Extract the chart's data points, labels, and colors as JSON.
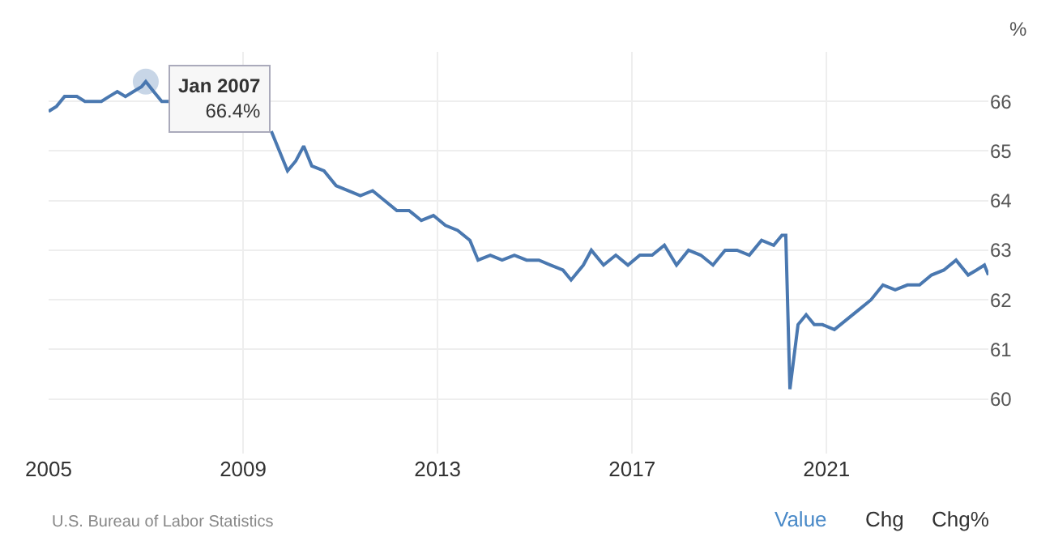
{
  "chart_data": {
    "type": "line",
    "ylabel": "%",
    "x": [
      "2005-01",
      "2005-03",
      "2005-05",
      "2005-08",
      "2005-10",
      "2005-12",
      "2006-02",
      "2006-04",
      "2006-06",
      "2006-08",
      "2006-10",
      "2006-12",
      "2007-01",
      "2007-03",
      "2007-05",
      "2007-07",
      "2007-09",
      "2007-12",
      "2008-03",
      "2008-06",
      "2008-09",
      "2008-12",
      "2009-03",
      "2009-06",
      "2009-08",
      "2009-10",
      "2009-12",
      "2010-02",
      "2010-04",
      "2010-06",
      "2010-09",
      "2010-12",
      "2011-03",
      "2011-06",
      "2011-09",
      "2011-12",
      "2012-03",
      "2012-06",
      "2012-09",
      "2012-12",
      "2013-03",
      "2013-06",
      "2013-09",
      "2013-11",
      "2014-02",
      "2014-05",
      "2014-08",
      "2014-11",
      "2015-02",
      "2015-05",
      "2015-08",
      "2015-10",
      "2016-01",
      "2016-03",
      "2016-06",
      "2016-09",
      "2016-12",
      "2017-03",
      "2017-06",
      "2017-09",
      "2017-12",
      "2018-03",
      "2018-06",
      "2018-09",
      "2018-12",
      "2019-03",
      "2019-06",
      "2019-09",
      "2019-12",
      "2020-02",
      "2020-03",
      "2020-04",
      "2020-06",
      "2020-08",
      "2020-10",
      "2020-12",
      "2021-03",
      "2021-06",
      "2021-09",
      "2021-12",
      "2022-03",
      "2022-06",
      "2022-09",
      "2022-12",
      "2023-03",
      "2023-06",
      "2023-09",
      "2023-12",
      "2024-02",
      "2024-04",
      "2024-05"
    ],
    "series": [
      {
        "color": "#4a78b0",
        "values": [
          65.8,
          65.9,
          66.1,
          66.1,
          66.0,
          66.0,
          66.0,
          66.1,
          66.2,
          66.1,
          66.2,
          66.3,
          66.4,
          66.2,
          66.0,
          66.0,
          null,
          null,
          null,
          null,
          null,
          null,
          null,
          null,
          65.4,
          65.0,
          64.6,
          64.8,
          65.1,
          64.7,
          64.6,
          64.3,
          64.2,
          64.1,
          64.2,
          64.0,
          63.8,
          63.8,
          63.6,
          63.7,
          63.5,
          63.4,
          63.2,
          62.8,
          62.9,
          62.8,
          62.9,
          62.8,
          62.8,
          62.7,
          62.6,
          62.4,
          62.7,
          63.0,
          62.7,
          62.9,
          62.7,
          62.9,
          62.9,
          63.1,
          62.7,
          63.0,
          62.9,
          62.7,
          63.0,
          63.0,
          62.9,
          63.2,
          63.1,
          63.3,
          63.3,
          60.2,
          61.5,
          61.7,
          61.5,
          61.5,
          61.4,
          61.6,
          61.8,
          62.0,
          62.3,
          62.2,
          62.3,
          62.3,
          62.5,
          62.6,
          62.8,
          62.5,
          62.6,
          62.7,
          62.5
        ]
      }
    ],
    "ylim": [
      58.9,
      67
    ],
    "yticks": [
      60,
      61,
      62,
      63,
      64,
      65,
      66
    ],
    "xlim": [
      "2005-01",
      "2024-05"
    ],
    "xticks": [
      "2005",
      "2009",
      "2013",
      "2017",
      "2021"
    ],
    "grid": true,
    "legend": false,
    "annotations": [
      {
        "text": "Jan 2007\n66.4%",
        "x": "2007-01",
        "y": 66.4
      },
      "U.S. Bureau of Labor Statistics",
      "Value",
      "Chg",
      "Chg%"
    ]
  }
}
